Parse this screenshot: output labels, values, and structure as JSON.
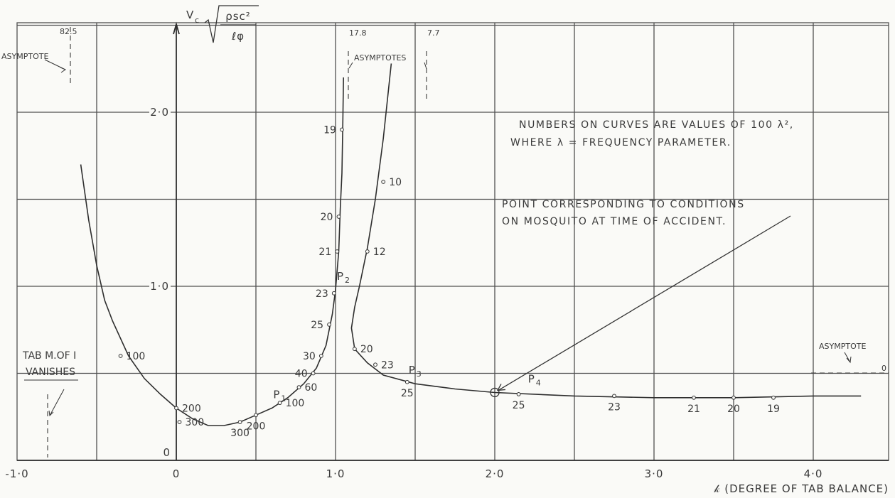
{
  "chart_data": {
    "type": "line",
    "title": "",
    "xlabel": "𝓀 (DEGREE OF TAB BALANCE)",
    "ylabel_prefix": "V",
    "ylabel_sub": "c",
    "ylabel_num": "ρsc²",
    "ylabel_den": "ℓφ",
    "xlim": [
      -1.0,
      4.5
    ],
    "ylim": [
      0,
      2.65
    ],
    "grid": true,
    "x_ticks": [
      {
        "value": -1.0,
        "label": "-1·0"
      },
      {
        "value": 0,
        "label": "0"
      },
      {
        "value": 1.0,
        "label": "1·0"
      },
      {
        "value": 2.0,
        "label": "2·0"
      },
      {
        "value": 3.0,
        "label": "3·0"
      },
      {
        "value": 4.0,
        "label": "4·0"
      }
    ],
    "y_ticks": [
      {
        "value": 0,
        "label": "0"
      },
      {
        "value": 1.0,
        "label": "1·0"
      },
      {
        "value": 2.0,
        "label": "2·0"
      }
    ],
    "series": [
      {
        "points": [
          [
            -0.6,
            1.7
          ],
          [
            -0.55,
            1.38
          ],
          [
            -0.5,
            1.12
          ],
          [
            -0.45,
            0.92
          ],
          [
            -0.4,
            0.8
          ],
          [
            -0.3,
            0.6
          ],
          [
            -0.2,
            0.47
          ],
          [
            -0.1,
            0.38
          ],
          [
            0,
            0.3
          ],
          [
            0.1,
            0.24
          ],
          [
            0.2,
            0.2
          ],
          [
            0.3,
            0.2
          ],
          [
            0.4,
            0.22
          ],
          [
            0.5,
            0.26
          ],
          [
            0.6,
            0.3
          ],
          [
            0.7,
            0.36
          ],
          [
            0.8,
            0.44
          ],
          [
            0.88,
            0.53
          ],
          [
            0.94,
            0.66
          ],
          [
            0.98,
            0.84
          ],
          [
            1.0,
            0.98
          ],
          [
            1.02,
            1.2
          ],
          [
            1.03,
            1.45
          ],
          [
            1.04,
            1.65
          ],
          [
            1.045,
            1.9
          ],
          [
            1.05,
            2.2
          ]
        ]
      },
      {
        "points": [
          [
            1.35,
            2.28
          ],
          [
            1.3,
            1.85
          ],
          [
            1.25,
            1.5
          ],
          [
            1.2,
            1.22
          ],
          [
            1.15,
            1.0
          ],
          [
            1.12,
            0.88
          ],
          [
            1.1,
            0.76
          ],
          [
            1.12,
            0.64
          ],
          [
            1.2,
            0.56
          ],
          [
            1.3,
            0.49
          ],
          [
            1.5,
            0.44
          ],
          [
            1.75,
            0.41
          ],
          [
            2.0,
            0.39
          ],
          [
            2.5,
            0.37
          ],
          [
            3.0,
            0.36
          ],
          [
            3.5,
            0.36
          ],
          [
            4.0,
            0.37
          ],
          [
            4.3,
            0.37
          ]
        ]
      }
    ],
    "curve_labels": [
      {
        "text": "100",
        "x": -0.35,
        "y": 0.6
      },
      {
        "text": "200",
        "x": 0.0,
        "y": 0.3
      },
      {
        "text": "300",
        "x": 0.02,
        "y": 0.22
      },
      {
        "text": "300",
        "x": 0.4,
        "y": 0.22
      },
      {
        "text": "200",
        "x": 0.5,
        "y": 0.26
      },
      {
        "text": "100",
        "x": 0.65,
        "y": 0.33
      },
      {
        "text": "60",
        "x": 0.77,
        "y": 0.42
      },
      {
        "text": "40",
        "x": 0.86,
        "y": 0.5
      },
      {
        "text": "30",
        "x": 0.91,
        "y": 0.6
      },
      {
        "text": "25",
        "x": 0.96,
        "y": 0.78
      },
      {
        "text": "23",
        "x": 0.99,
        "y": 0.96
      },
      {
        "text": "21",
        "x": 1.01,
        "y": 1.2
      },
      {
        "text": "20",
        "x": 1.02,
        "y": 1.4
      },
      {
        "text": "19",
        "x": 1.04,
        "y": 1.9
      },
      {
        "text": "10",
        "x": 1.3,
        "y": 1.6
      },
      {
        "text": "12",
        "x": 1.2,
        "y": 1.2
      },
      {
        "text": "20",
        "x": 1.12,
        "y": 0.64
      },
      {
        "text": "23",
        "x": 1.25,
        "y": 0.55
      },
      {
        "text": "25",
        "x": 1.45,
        "y": 0.45
      },
      {
        "text": "25",
        "x": 2.15,
        "y": 0.38
      },
      {
        "text": "23",
        "x": 2.75,
        "y": 0.37
      },
      {
        "text": "21",
        "x": 3.25,
        "y": 0.36
      },
      {
        "text": "20",
        "x": 3.5,
        "y": 0.36
      },
      {
        "text": "19",
        "x": 3.75,
        "y": 0.36
      }
    ],
    "point_labels": [
      {
        "text": "P",
        "sub": "1",
        "x": 0.6
      },
      {
        "text": "P",
        "sub": "2",
        "x": 1.0
      },
      {
        "text": "P",
        "sub": "3",
        "x": 1.45
      },
      {
        "text": "P",
        "sub": "4",
        "x": 2.2
      }
    ],
    "annotations": {
      "note_line1": "NUMBERS ON CURVES ARE VALUES OF 100 λ²,",
      "note_line2": "WHERE λ = FREQUENCY PARAMETER.",
      "accident_line1": "POINT CORRESPONDING TO CONDITIONS",
      "accident_line2": "ON MOSQUITO AT TIME OF ACCIDENT.",
      "asymptote_left": "ASYMPTOTE",
      "asymptote_left_value": "82.5",
      "asymptotes_middle": "ASYMPTOTES",
      "asymptote_mid_value_1": "17.8",
      "asymptote_mid_value_2": "7.7",
      "asymptote_right": "ASYMPTOTE",
      "asymptote_right_value": "0",
      "tab_note_line1": "TAB M.OF I",
      "tab_note_line2": "VANISHES",
      "origin_label": "0"
    }
  }
}
